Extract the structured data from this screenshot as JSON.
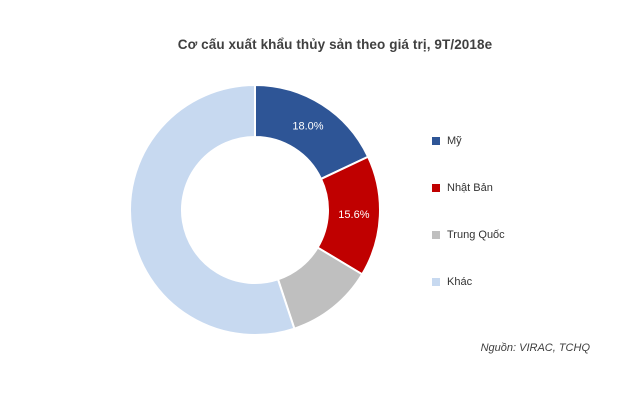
{
  "chart_data": {
    "type": "pie",
    "subtype": "donut",
    "title": "Cơ cấu xuất khẩu thủy sản theo giá trị, 9T/2018e",
    "categories": [
      "Mỹ",
      "Nhật Bản",
      "Trung Quốc",
      "Khác"
    ],
    "values": [
      18.0,
      15.6,
      11.3,
      55.1
    ],
    "data_labels": [
      "18.0%",
      "15.6%",
      "",
      ""
    ],
    "colors": [
      "#2E5596",
      "#C00000",
      "#BFBFBF",
      "#C7D9F0"
    ],
    "start_angle_deg": 0,
    "direction": "clockwise",
    "donut_hole_ratio": 0.58,
    "slice_separator_color": "#FFFFFF",
    "data_label_color": "#FFFFFF",
    "legend_position": "right",
    "grid": false
  },
  "source": {
    "label": "Nguồn: VIRAC, TCHQ"
  }
}
